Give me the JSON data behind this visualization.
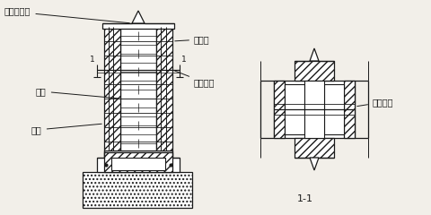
{
  "bg_color": "#f2efe9",
  "line_color": "#1a1a1a",
  "labels": {
    "top_left": "混凝土壁柱",
    "right1": "拉结筋",
    "right2": "纵向钢筋",
    "left1": "砖墙",
    "left2": "箍筋",
    "section_label": "1-1",
    "section_right": "拉结腹杆",
    "cut_left": "1",
    "cut_right": "1"
  },
  "figsize": [
    4.81,
    2.4
  ],
  "dpi": 100
}
